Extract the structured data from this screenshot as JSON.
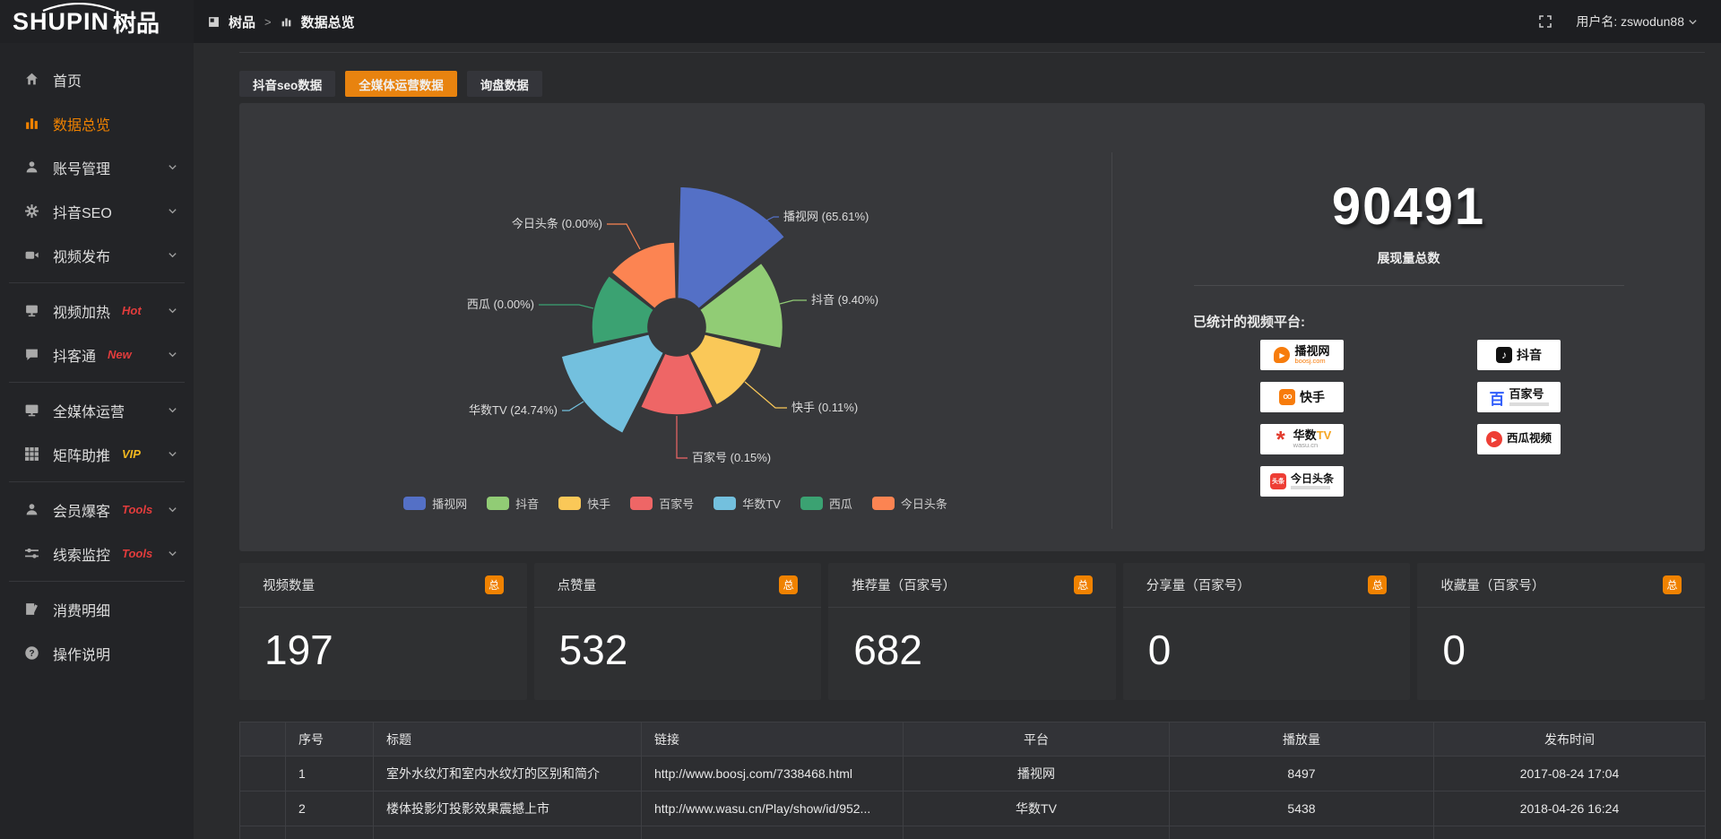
{
  "topbar": {
    "logo_en": "SHUPIN",
    "logo_cn": "树品",
    "breadcrumb": {
      "root": "树品",
      "sep": ">",
      "current": "数据总览"
    },
    "user_label": "用户名: zswodun88"
  },
  "sidebar": {
    "groups": [
      {
        "items": [
          {
            "label": "首页",
            "icon": "home-icon"
          },
          {
            "label": "数据总览",
            "icon": "bar-chart-icon",
            "active": true
          },
          {
            "label": "账号管理",
            "icon": "user-icon",
            "chevron": true
          },
          {
            "label": "抖音SEO",
            "icon": "gear-icon",
            "chevron": true
          },
          {
            "label": "视频发布",
            "icon": "video-camera-icon",
            "chevron": true
          }
        ]
      },
      {
        "items": [
          {
            "label": "视频加热",
            "icon": "screen-icon",
            "badge": "Hot",
            "badge_color": "#e23c3c",
            "chevron": true
          },
          {
            "label": "抖客通",
            "icon": "chat-icon",
            "badge": "New",
            "badge_color": "#e23c3c",
            "chevron": true
          }
        ]
      },
      {
        "items": [
          {
            "label": "全媒体运营",
            "icon": "monitor-icon",
            "chevron": true
          },
          {
            "label": "矩阵助推",
            "icon": "grid-icon",
            "badge": "VIP",
            "badge_color": "#f0b71f",
            "chevron": true
          }
        ]
      },
      {
        "items": [
          {
            "label": "会员爆客",
            "icon": "member-icon",
            "badge": "Tools",
            "badge_color": "#e23c3c",
            "chevron": true
          },
          {
            "label": "线索监控",
            "icon": "sliders-icon",
            "badge": "Tools",
            "badge_color": "#e23c3c",
            "chevron": true
          }
        ]
      },
      {
        "items": [
          {
            "label": "消费明细",
            "icon": "bill-icon"
          },
          {
            "label": "操作说明",
            "icon": "help-icon"
          }
        ]
      }
    ]
  },
  "tabs": [
    {
      "label": "抖音seo数据",
      "active": false
    },
    {
      "label": "全媒体运营数据",
      "active": true
    },
    {
      "label": "询盘数据",
      "active": false
    }
  ],
  "chart_data": {
    "type": "pie",
    "variant": "nightingale-rose",
    "unit": "percent",
    "legend_position": "bottom",
    "items": [
      {
        "name": "播视网",
        "value": 65.61,
        "color": "#5470c6"
      },
      {
        "name": "抖音",
        "value": 9.4,
        "color": "#91cc75"
      },
      {
        "name": "快手",
        "value": 0.11,
        "color": "#fac858"
      },
      {
        "name": "百家号",
        "value": 0.15,
        "color": "#ee6666"
      },
      {
        "name": "华数TV",
        "value": 24.74,
        "color": "#73c0de"
      },
      {
        "name": "西瓜",
        "value": 0.0,
        "color": "#3ba272"
      },
      {
        "name": "今日头条",
        "value": 0.0,
        "color": "#fc8452"
      }
    ]
  },
  "summary": {
    "total_value": "90491",
    "total_label": "展现量总数",
    "platforms_title": "已统计的视频平台:",
    "platforms": [
      {
        "name": "播视网",
        "sub": "boosj.com",
        "column": 1
      },
      {
        "name": "快手",
        "sub": "",
        "column": 1
      },
      {
        "name": "华数TV",
        "sub": "wasu.cn",
        "column": 1
      },
      {
        "name": "今日头条",
        "sub": "",
        "column": 1
      },
      {
        "name": "抖音",
        "sub": "",
        "column": 2
      },
      {
        "name": "百家号",
        "sub": "",
        "column": 2
      },
      {
        "name": "西瓜视频",
        "sub": "",
        "column": 2
      }
    ]
  },
  "stat_cards": [
    {
      "title": "视频数量",
      "badge": "总",
      "value": "197"
    },
    {
      "title": "点赞量",
      "badge": "总",
      "value": "532"
    },
    {
      "title": "推荐量（百家号）",
      "badge": "总",
      "value": "682"
    },
    {
      "title": "分享量（百家号）",
      "badge": "总",
      "value": "0"
    },
    {
      "title": "收藏量（百家号）",
      "badge": "总",
      "value": "0"
    }
  ],
  "table": {
    "headers": [
      "序号",
      "标题",
      "链接",
      "平台",
      "播放量",
      "发布时间"
    ],
    "rows": [
      {
        "index": "1",
        "title": "室外水纹灯和室内水纹灯的区别和简介",
        "link": "http://www.boosj.com/7338468.html",
        "platform": "播视网",
        "plays": "8497",
        "published": "2017-08-24 17:04"
      },
      {
        "index": "2",
        "title": "楼体投影灯投影效果震撼上市",
        "link": "http://www.wasu.cn/Play/show/id/952...",
        "platform": "华数TV",
        "plays": "5438",
        "published": "2018-04-26 16:24"
      },
      {
        "index": "",
        "title": "",
        "link": "",
        "platform": "",
        "plays": "",
        "published": ""
      }
    ]
  },
  "colors": {
    "accent": "#f08200",
    "tab_active": "#e8830f",
    "link_orange": "#e2913c"
  }
}
